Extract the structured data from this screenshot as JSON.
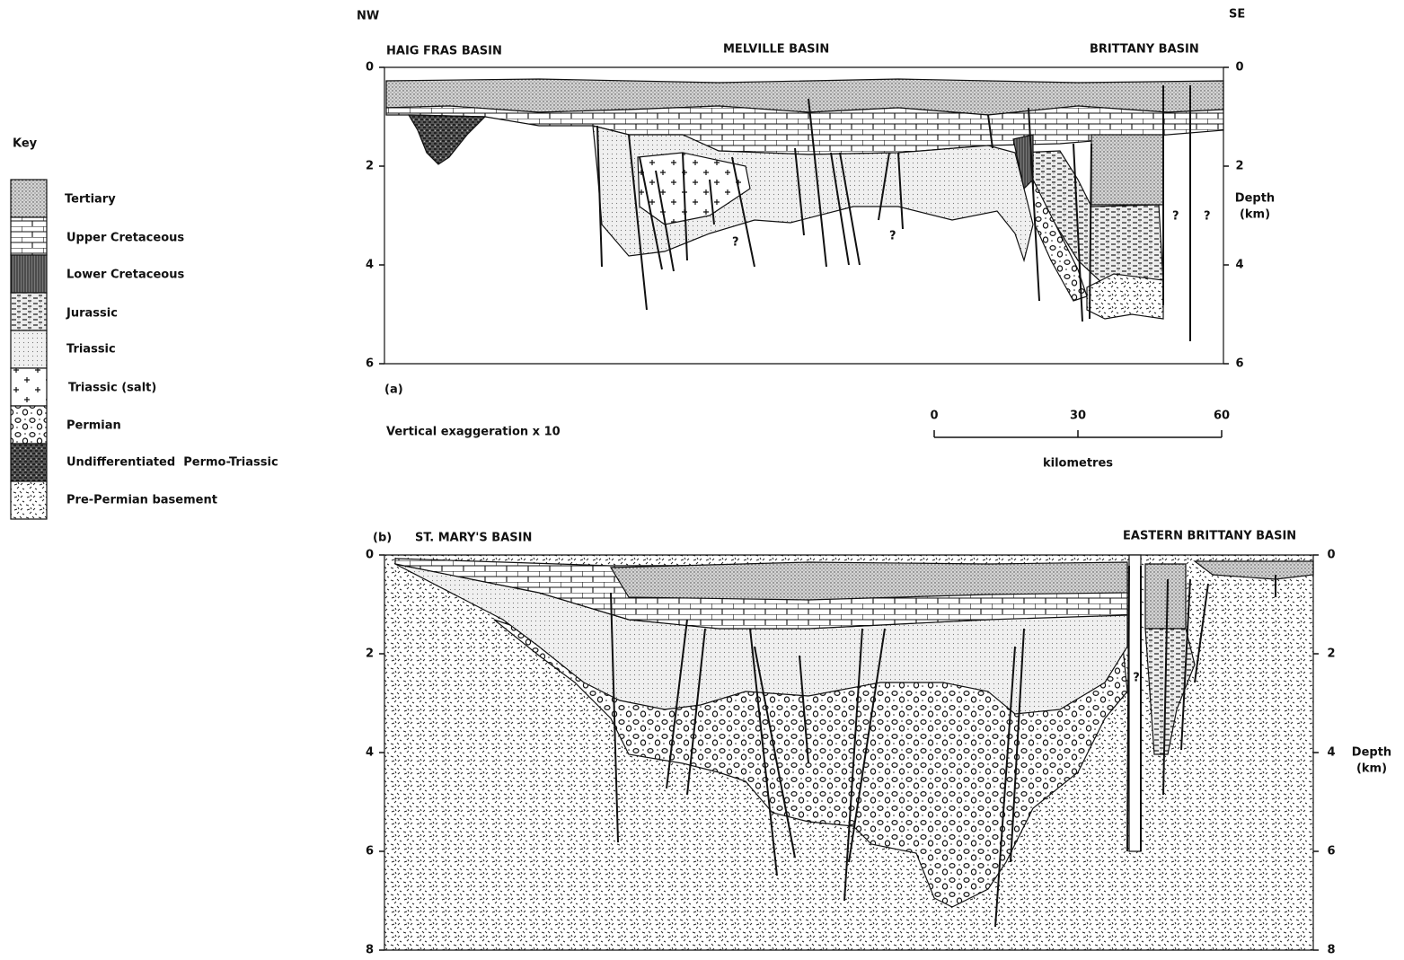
{
  "orientation": {
    "left": "NW",
    "right": "SE"
  },
  "key": {
    "title": "Key",
    "items": [
      "Tertiary",
      "Upper Cretaceous",
      "Lower Cretaceous",
      "Jurassic",
      "Triassic",
      "Triassic (salt)",
      "Permian",
      "Undifferentiated  Permo-Triassic",
      "Pre-Permian basement"
    ]
  },
  "panel_a": {
    "label": "(a)",
    "basins": [
      "HAIG FRAS BASIN",
      "MELVILLE BASIN",
      "BRITTANY BASIN"
    ],
    "depth_range": [
      0,
      6
    ],
    "depth_ticks": [
      0,
      2,
      4,
      6
    ],
    "depth_title": [
      "Depth",
      "(km)"
    ],
    "question_marks": [
      "?",
      "?",
      "?",
      "?"
    ],
    "vertical_exaggeration": "Vertical exaggeration x 10",
    "scale_bar": {
      "range": [
        0,
        60
      ],
      "ticks": [
        0,
        30,
        60
      ],
      "unit": "kilometres"
    }
  },
  "panel_b": {
    "label": "(b)",
    "basins": [
      "ST. MARY'S BASIN",
      "EASTERN BRITTANY BASIN"
    ],
    "depth_range": [
      0,
      8
    ],
    "depth_ticks": [
      0,
      2,
      4,
      6,
      8
    ],
    "depth_title": [
      "Depth",
      "(km)"
    ],
    "question_marks": [
      "?"
    ]
  }
}
